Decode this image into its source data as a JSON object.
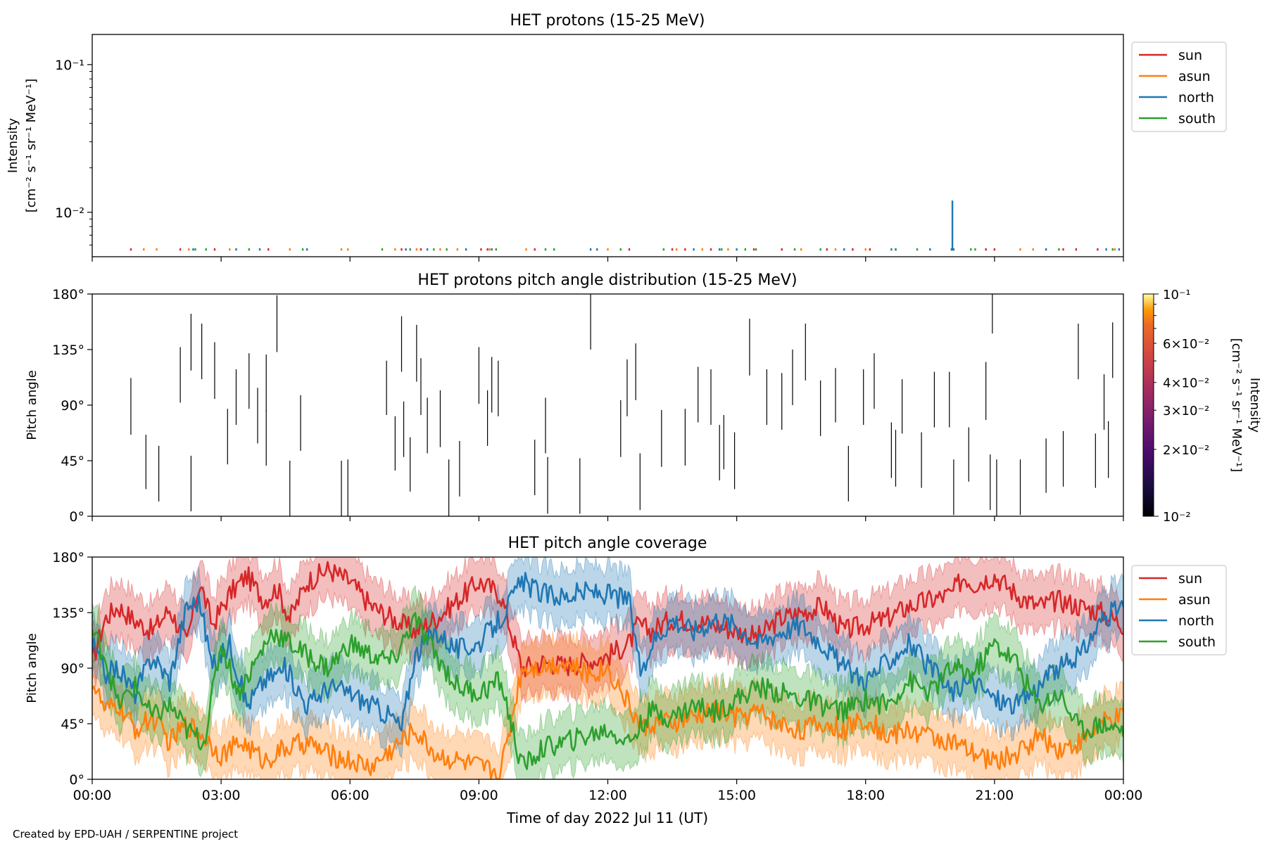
{
  "footer": "Created by EPD-UAH / SERPENTINE project",
  "colors": {
    "sun": "#d62728",
    "asun": "#ff7f0e",
    "north": "#1f77b4",
    "south": "#2ca02c"
  },
  "chart_data": [
    {
      "id": "intensity",
      "type": "line",
      "title": "HET protons (15-25 MeV)",
      "ylabel_lines": [
        "Intensity",
        "[cm⁻² s⁻¹ sr⁻¹ MeV⁻¹]"
      ],
      "yscale": "log",
      "ylim": [
        0.005,
        0.16
      ],
      "yticks": [
        {
          "value": 0.01,
          "label": "10⁻²"
        },
        {
          "value": 0.1,
          "label": "10⁻¹"
        }
      ],
      "xlim_hours": [
        0,
        24
      ],
      "legend": {
        "placement": "outside-right-top",
        "entries": [
          "sun",
          "asun",
          "north",
          "south"
        ]
      },
      "baseline": 0.0055,
      "series": [
        {
          "name": "sun",
          "spikes_hours": [
            0.9,
            2.05,
            2.85,
            4.1,
            7.2,
            7.65,
            9.05,
            9.2,
            10.3,
            12.5,
            13.5,
            13.8,
            14.4,
            15.4,
            16.05,
            17.1,
            17.7,
            18.1,
            20.8,
            21.0,
            22.6,
            22.9,
            23.4
          ],
          "values": [
            0.0057
          ]
        },
        {
          "name": "asun",
          "spikes_hours": [
            1.2,
            1.5,
            2.25,
            3.2,
            4.6,
            5.8,
            5.95,
            7.05,
            7.55,
            8.1,
            8.5,
            9.25,
            10.1,
            12.0,
            13.6,
            14.2,
            14.8,
            16.5,
            17.3,
            18.0,
            21.6,
            21.9,
            23.8
          ],
          "values": [
            0.0057
          ]
        },
        {
          "name": "north",
          "spikes_hours": [
            2.35,
            3.35,
            3.9,
            5.0,
            7.3,
            7.8,
            8.7,
            9.3,
            11.6,
            11.75,
            14.0,
            14.6,
            15.0,
            17.5,
            18.6,
            18.7,
            19.5,
            20.0,
            20.05,
            22.2,
            23.6,
            23.9
          ],
          "values": [
            0.0057
          ],
          "peak": {
            "hour": 20.02,
            "value": 0.012
          }
        },
        {
          "name": "south",
          "spikes_hours": [
            2.4,
            2.65,
            3.65,
            4.9,
            6.75,
            7.4,
            7.95,
            8.25,
            9.4,
            10.55,
            10.75,
            12.3,
            13.3,
            14.65,
            15.2,
            15.45,
            16.35,
            16.95,
            18.7,
            19.2,
            20.45,
            20.55,
            22.5,
            23.75
          ],
          "values": [
            0.0057
          ]
        }
      ]
    },
    {
      "id": "pad",
      "type": "heatmap",
      "title": "HET protons pitch angle distribution (15-25 MeV)",
      "ylabel": "Pitch angle",
      "ylim": [
        0,
        180
      ],
      "yticks": [
        "0°",
        "45°",
        "90°",
        "135°",
        "180°"
      ],
      "xlim_hours": [
        0,
        24
      ],
      "colorbar": {
        "label": "Intensity",
        "unit": "[cm⁻² s⁻¹ sr⁻¹ MeV⁻¹]",
        "scale": "log",
        "range": [
          0.01,
          0.1
        ],
        "ticks": [
          {
            "value": 0.01,
            "label": "10⁻²",
            "major": true
          },
          {
            "value": 0.02,
            "label": "2×10⁻²",
            "major": false
          },
          {
            "value": 0.03,
            "label": "3×10⁻²",
            "major": false
          },
          {
            "value": 0.04,
            "label": "4×10⁻²",
            "major": false
          },
          {
            "value": 0.06,
            "label": "6×10⁻²",
            "major": false
          },
          {
            "value": 0.1,
            "label": "10⁻¹",
            "major": true
          }
        ]
      },
      "segments": [
        [
          0.9,
          66,
          112
        ],
        [
          1.25,
          22,
          66
        ],
        [
          1.55,
          12,
          57
        ],
        [
          2.05,
          92,
          137
        ],
        [
          2.3,
          4,
          49
        ],
        [
          2.3,
          118,
          164
        ],
        [
          2.55,
          111,
          156
        ],
        [
          2.85,
          95,
          141
        ],
        [
          3.15,
          42,
          87
        ],
        [
          3.35,
          74,
          119
        ],
        [
          3.65,
          87,
          132
        ],
        [
          3.85,
          59,
          104
        ],
        [
          4.05,
          85,
          131
        ],
        [
          4.05,
          41,
          86
        ],
        [
          4.3,
          133,
          179
        ],
        [
          4.6,
          0,
          45
        ],
        [
          4.85,
          53,
          98
        ],
        [
          5.8,
          0,
          45
        ],
        [
          5.95,
          0,
          46
        ],
        [
          6.85,
          82,
          126
        ],
        [
          7.05,
          37,
          81
        ],
        [
          7.2,
          117,
          162
        ],
        [
          7.25,
          48,
          93
        ],
        [
          7.4,
          20,
          64
        ],
        [
          7.55,
          109,
          155
        ],
        [
          7.65,
          82,
          128
        ],
        [
          7.8,
          51,
          96
        ],
        [
          8.1,
          56,
          102
        ],
        [
          8.3,
          0,
          46
        ],
        [
          8.55,
          16,
          61
        ],
        [
          9.0,
          91,
          137
        ],
        [
          9.2,
          57,
          102
        ],
        [
          9.3,
          84,
          129
        ],
        [
          9.45,
          81,
          126
        ],
        [
          10.3,
          17,
          62
        ],
        [
          10.55,
          51,
          96
        ],
        [
          10.6,
          2,
          48
        ],
        [
          11.35,
          2,
          47
        ],
        [
          11.6,
          135,
          181
        ],
        [
          12.3,
          48,
          94
        ],
        [
          12.45,
          81,
          127
        ],
        [
          12.65,
          94,
          140
        ],
        [
          12.75,
          5,
          51
        ],
        [
          13.25,
          40,
          86
        ],
        [
          13.8,
          41,
          87
        ],
        [
          14.1,
          76,
          121
        ],
        [
          14.4,
          74,
          119
        ],
        [
          14.6,
          29,
          74
        ],
        [
          14.7,
          38,
          82
        ],
        [
          14.95,
          22,
          68
        ],
        [
          15.3,
          114,
          160
        ],
        [
          15.7,
          74,
          119
        ],
        [
          16.05,
          70,
          116
        ],
        [
          16.3,
          90,
          135
        ],
        [
          16.6,
          110,
          156
        ],
        [
          16.95,
          65,
          110
        ],
        [
          17.3,
          76,
          120
        ],
        [
          17.6,
          12,
          57
        ],
        [
          17.95,
          74,
          119
        ],
        [
          18.2,
          87,
          132
        ],
        [
          18.6,
          31,
          76
        ],
        [
          18.7,
          24,
          70
        ],
        [
          18.85,
          67,
          111
        ],
        [
          19.3,
          23,
          68
        ],
        [
          19.6,
          72,
          117
        ],
        [
          19.95,
          72,
          117
        ],
        [
          20.05,
          1,
          46
        ],
        [
          20.4,
          28,
          72
        ],
        [
          20.8,
          78,
          125
        ],
        [
          20.9,
          5,
          50
        ],
        [
          20.95,
          148,
          180
        ],
        [
          21.05,
          0,
          46
        ],
        [
          21.6,
          1,
          46
        ],
        [
          22.2,
          19,
          63
        ],
        [
          22.6,
          24,
          69
        ],
        [
          22.95,
          111,
          156
        ],
        [
          23.35,
          23,
          67
        ],
        [
          23.55,
          70,
          115
        ],
        [
          23.65,
          31,
          77
        ],
        [
          23.75,
          112,
          157
        ]
      ]
    },
    {
      "id": "coverage",
      "type": "line",
      "title": "HET pitch angle coverage",
      "ylabel": "Pitch angle",
      "xlabel": "Time of day 2022 Jul 11 (UT)",
      "ylim": [
        0,
        180
      ],
      "yticks": [
        "0°",
        "45°",
        "90°",
        "135°",
        "180°"
      ],
      "xlim_hours": [
        0,
        24
      ],
      "xticks": [
        "00:00",
        "03:00",
        "06:00",
        "09:00",
        "12:00",
        "15:00",
        "18:00",
        "21:00",
        "00:00"
      ],
      "legend": {
        "placement": "outside-right-top",
        "entries": [
          "sun",
          "asun",
          "north",
          "south"
        ]
      },
      "band_halfwidth_deg": 22,
      "series": [
        {
          "name": "sun",
          "x": [
            0,
            0.3,
            0.6,
            1.0,
            1.4,
            1.8,
            2.2,
            2.5,
            2.8,
            3.2,
            3.6,
            4.0,
            4.3,
            4.6,
            5.0,
            5.5,
            6.0,
            6.5,
            7.0,
            7.5,
            8.0,
            8.5,
            9.0,
            9.5,
            10.0,
            10.5,
            11.0,
            11.5,
            12.0,
            12.5,
            12.7,
            13.0,
            13.5,
            14.0,
            14.5,
            15.0,
            15.5,
            16.0,
            16.5,
            17.0,
            17.5,
            18.0,
            18.5,
            19.0,
            19.5,
            20.0,
            20.3,
            20.5,
            21.0,
            21.5,
            22.0,
            22.5,
            23.0,
            23.5,
            24
          ],
          "values": [
            95,
            130,
            140,
            128,
            120,
            138,
            110,
            160,
            125,
            150,
            165,
            145,
            155,
            130,
            160,
            170,
            160,
            140,
            130,
            120,
            130,
            145,
            160,
            150,
            90,
            95,
            92,
            95,
            100,
            110,
            125,
            120,
            130,
            128,
            125,
            120,
            115,
            130,
            135,
            140,
            120,
            125,
            130,
            140,
            145,
            150,
            165,
            158,
            165,
            150,
            140,
            145,
            140,
            135,
            125
          ]
        },
        {
          "name": "asun",
          "x": [
            0,
            0.3,
            0.6,
            1.0,
            1.4,
            1.8,
            2.2,
            2.6,
            3.0,
            3.5,
            4.0,
            4.5,
            5.0,
            5.5,
            6.0,
            6.5,
            7.0,
            7.5,
            8.0,
            8.5,
            9.0,
            9.5,
            10.0,
            10.5,
            11.0,
            11.5,
            12.0,
            12.5,
            12.8,
            13.0,
            13.5,
            14.0,
            14.5,
            15.0,
            15.5,
            16.0,
            16.5,
            17.0,
            17.5,
            18.0,
            18.5,
            19.0,
            19.5,
            20.0,
            20.5,
            21.0,
            21.5,
            22.0,
            22.5,
            23.0,
            23.5,
            24
          ],
          "values": [
            80,
            55,
            60,
            40,
            50,
            30,
            45,
            35,
            20,
            30,
            15,
            25,
            30,
            20,
            15,
            10,
            25,
            40,
            20,
            15,
            10,
            5,
            90,
            92,
            95,
            85,
            90,
            60,
            40,
            45,
            45,
            50,
            55,
            50,
            55,
            45,
            40,
            45,
            40,
            50,
            35,
            40,
            35,
            30,
            20,
            15,
            20,
            35,
            25,
            30,
            45,
            50
          ]
        },
        {
          "name": "north",
          "x": [
            0,
            0.3,
            0.6,
            1.0,
            1.4,
            1.8,
            2.2,
            2.5,
            2.8,
            3.2,
            3.6,
            4.0,
            4.5,
            5.0,
            5.5,
            6.0,
            6.5,
            7.0,
            7.2,
            7.5,
            8.0,
            8.5,
            9.0,
            9.5,
            10.0,
            10.5,
            11.0,
            11.5,
            12.0,
            12.5,
            12.8,
            13.0,
            13.5,
            14.0,
            14.5,
            15.0,
            15.5,
            16.0,
            16.5,
            17.0,
            17.5,
            18.0,
            18.5,
            19.0,
            19.5,
            20.0,
            20.5,
            21.0,
            21.5,
            22.0,
            22.5,
            23.0,
            23.5,
            24
          ],
          "values": [
            110,
            85,
            90,
            70,
            100,
            80,
            140,
            145,
            90,
            110,
            60,
            80,
            90,
            60,
            75,
            70,
            60,
            50,
            40,
            100,
            120,
            105,
            110,
            130,
            160,
            150,
            148,
            152,
            150,
            145,
            80,
            110,
            130,
            120,
            130,
            125,
            110,
            120,
            125,
            110,
            90,
            80,
            95,
            110,
            90,
            70,
            80,
            65,
            60,
            75,
            90,
            100,
            130,
            140
          ]
        },
        {
          "name": "south",
          "x": [
            0,
            0.3,
            0.6,
            1.0,
            1.4,
            1.8,
            2.2,
            2.6,
            3.0,
            3.4,
            3.8,
            4.2,
            4.6,
            5.0,
            5.5,
            6.0,
            6.5,
            7.0,
            7.5,
            8.0,
            8.5,
            9.0,
            9.5,
            10.0,
            10.5,
            11.0,
            11.5,
            12.0,
            12.5,
            12.8,
            13.0,
            13.5,
            14.0,
            14.5,
            15.0,
            15.5,
            16.0,
            16.5,
            17.0,
            17.5,
            18.0,
            18.5,
            19.0,
            19.5,
            20.0,
            20.5,
            21.0,
            21.5,
            22.0,
            22.5,
            23.0,
            23.5,
            24
          ],
          "values": [
            120,
            100,
            60,
            75,
            50,
            60,
            40,
            30,
            110,
            70,
            95,
            120,
            110,
            100,
            90,
            110,
            100,
            95,
            130,
            100,
            75,
            70,
            80,
            10,
            25,
            30,
            35,
            40,
            30,
            45,
            55,
            50,
            60,
            55,
            65,
            75,
            70,
            65,
            60,
            55,
            65,
            60,
            80,
            70,
            90,
            85,
            110,
            95,
            60,
            70,
            40,
            45,
            40
          ]
        }
      ]
    }
  ]
}
